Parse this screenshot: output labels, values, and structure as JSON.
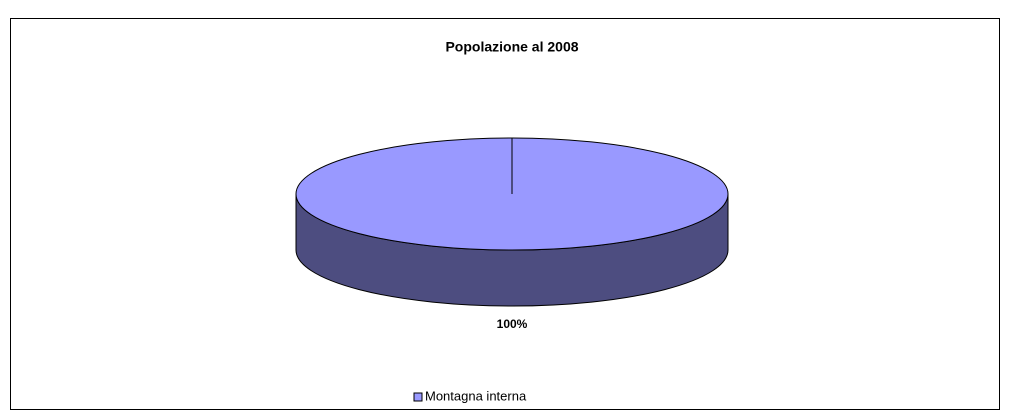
{
  "chart_data": {
    "type": "pie",
    "title": "Popolazione al 2008",
    "categories": [
      "Montagna interna"
    ],
    "values": [
      100
    ],
    "value_labels": [
      "100%"
    ],
    "colors": [
      "#9999ff"
    ],
    "legend": "bottom"
  }
}
